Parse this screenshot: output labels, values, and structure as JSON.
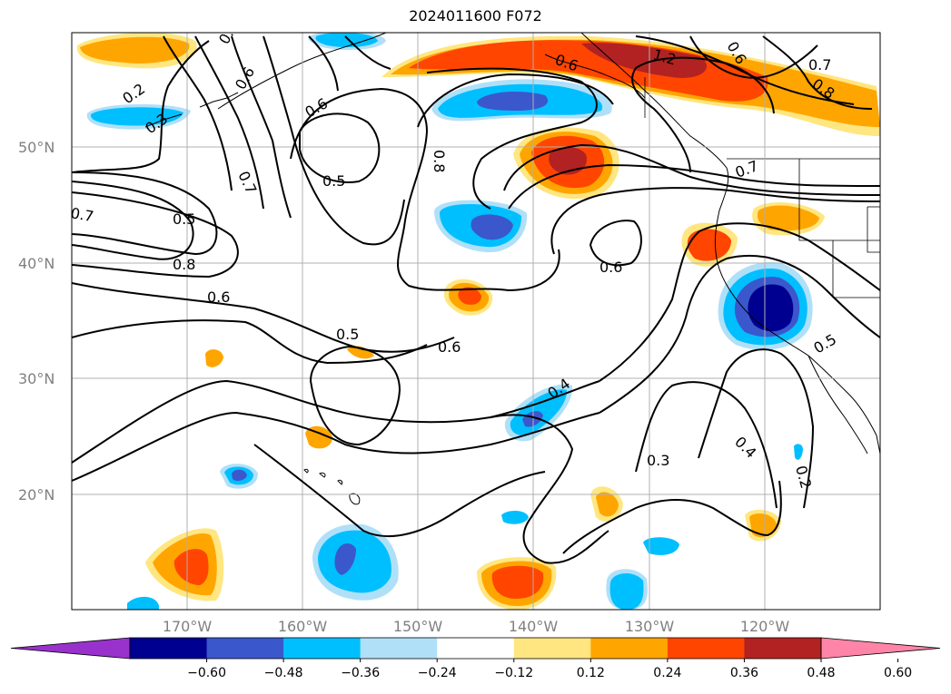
{
  "title": "2024011600 F072",
  "lat_labels": [
    "50°N",
    "40°N",
    "30°N",
    "20°N"
  ],
  "lon_labels": [
    "170°W",
    "160°W",
    "150°W",
    "140°W",
    "130°W",
    "120°W"
  ],
  "contour_labels": [
    "0.2",
    "0.3",
    "0.2",
    "0.7",
    "0.5",
    "0.8",
    "0.6",
    "0.6",
    "0.5",
    "0.7",
    "0.8",
    "0.6",
    "0.6",
    "0.5",
    "0.6",
    "0.4",
    "0.3",
    "0.4",
    "0.2",
    "1.2",
    "0.7",
    "0.8",
    "0.7",
    "0.6",
    "0.6",
    "0.5"
  ],
  "colorbar": {
    "ticks": [
      "−0.60",
      "−0.48",
      "−0.36",
      "−0.24",
      "−0.12",
      "0.12",
      "0.24",
      "0.36",
      "0.48",
      "0.60"
    ],
    "colors": [
      "#9932cc",
      "#000090",
      "#3b57cc",
      "#00bfff",
      "#b0e0f8",
      "#ffffff",
      "#ffe680",
      "#ffa500",
      "#ff4500",
      "#b22222",
      "#ff85a8"
    ]
  }
}
